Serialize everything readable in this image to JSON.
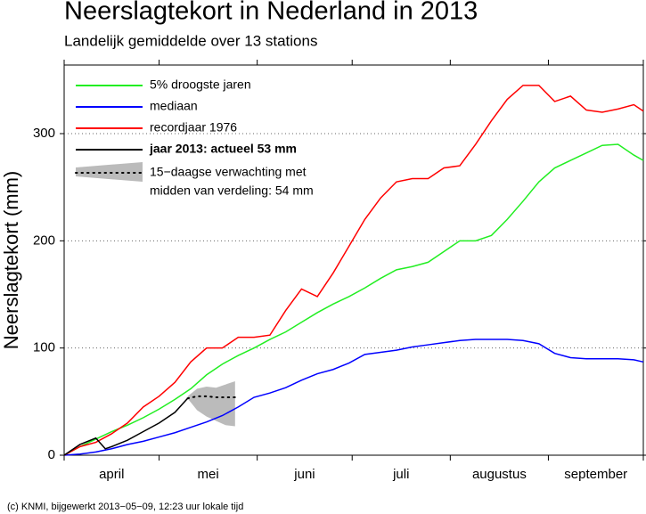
{
  "chart_data": {
    "type": "line",
    "title": "Neerslagtekort in Nederland in 2013",
    "subtitle": "Landelijk gemiddelde over 13 stations",
    "y_label": "Neerslagtekort (mm)",
    "footer": "(c) KNMI, bijgewerkt 2013−05−09, 12:23 uur lokale tijd",
    "categories": [
      "april",
      "mei",
      "juni",
      "juli",
      "augustus",
      "september"
    ],
    "xlim": [
      0,
      183
    ],
    "xticks": [
      0,
      30,
      61,
      91,
      122,
      153,
      183
    ],
    "ylim": [
      0,
      364
    ],
    "yticks": [
      0,
      100,
      200,
      300
    ],
    "grid": true,
    "x": [
      0,
      5,
      10,
      15,
      20,
      25,
      30,
      35,
      40,
      45,
      50,
      55,
      60,
      65,
      70,
      75,
      80,
      85,
      90,
      95,
      100,
      105,
      110,
      115,
      120,
      125,
      130,
      135,
      140,
      145,
      150,
      155,
      160,
      165,
      170,
      175,
      180,
      183
    ],
    "series": [
      {
        "name": "5% droogste jaren",
        "color": "#22ee22",
        "values": [
          0,
          8,
          15,
          22,
          28,
          35,
          43,
          52,
          62,
          75,
          85,
          93,
          100,
          108,
          115,
          124,
          133,
          141,
          148,
          156,
          165,
          173,
          176,
          180,
          190,
          200,
          200,
          205,
          220,
          237,
          255,
          268,
          275,
          282,
          289,
          290,
          280,
          275
        ]
      },
      {
        "name": "mediaan",
        "color": "#0000ff",
        "values": [
          0,
          1,
          3,
          6,
          10,
          13,
          17,
          21,
          26,
          31,
          37,
          45,
          54,
          58,
          63,
          70,
          76,
          80,
          86,
          94,
          96,
          98,
          101,
          103,
          105,
          107,
          108,
          108,
          108,
          107,
          104,
          95,
          91,
          90,
          90,
          90,
          89,
          87
        ]
      },
      {
        "name": "recordjaar 1976",
        "color": "#ff0000",
        "values": [
          0,
          8,
          12,
          20,
          30,
          45,
          55,
          68,
          87,
          100,
          100,
          110,
          110,
          112,
          135,
          155,
          148,
          170,
          195,
          220,
          240,
          255,
          258,
          258,
          268,
          270,
          290,
          312,
          332,
          345,
          345,
          330,
          335,
          322,
          320,
          323,
          327,
          321
        ]
      },
      {
        "name": "jaar 2013: actueel 53 mm",
        "color": "#000000",
        "x": [
          0,
          5,
          10,
          13,
          15,
          20,
          25,
          30,
          35,
          39
        ],
        "values": [
          0,
          10,
          16,
          6,
          8,
          14,
          22,
          30,
          40,
          53
        ]
      }
    ],
    "forecast": {
      "name": [
        "15−daagse verwachting met",
        "midden van verdeling: 54 mm"
      ],
      "color": "#bbbbbb",
      "x": [
        39,
        42,
        45,
        48,
        51,
        54
      ],
      "median": [
        53,
        55,
        55,
        54,
        54,
        54
      ],
      "low": [
        53,
        42,
        36,
        32,
        28,
        27
      ],
      "high": [
        55,
        62,
        64,
        63,
        66,
        69
      ]
    }
  }
}
